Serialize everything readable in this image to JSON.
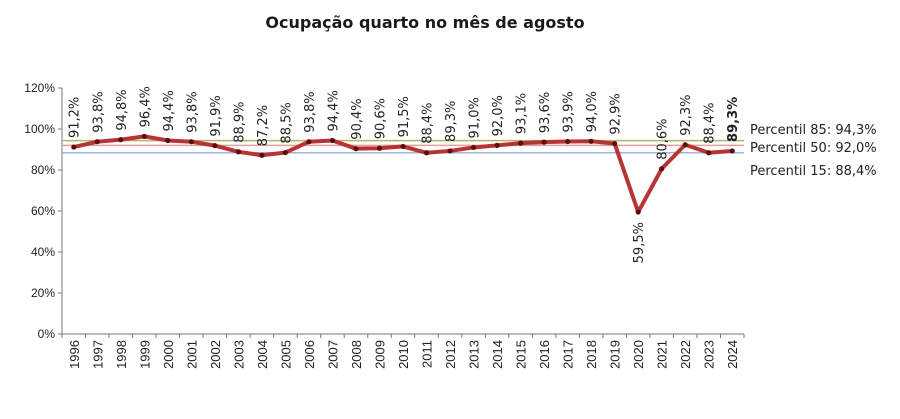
{
  "chart_data": {
    "type": "line",
    "title": "Ocupação quarto no mês de agosto",
    "categories": [
      "1996",
      "1997",
      "1998",
      "1999",
      "2000",
      "2001",
      "2002",
      "2003",
      "2004",
      "2005",
      "2006",
      "2007",
      "2008",
      "2009",
      "2010",
      "2011",
      "2012",
      "2013",
      "2014",
      "2015",
      "2016",
      "2017",
      "2018",
      "2019",
      "2020",
      "2021",
      "2022",
      "2023",
      "2024"
    ],
    "values": [
      91.2,
      93.8,
      94.8,
      96.4,
      94.4,
      93.8,
      91.9,
      88.9,
      87.2,
      88.5,
      93.8,
      94.4,
      90.4,
      90.6,
      91.5,
      88.4,
      89.3,
      91.0,
      92.0,
      93.1,
      93.6,
      93.9,
      94.0,
      92.9,
      59.5,
      80.6,
      92.3,
      88.4,
      89.3
    ],
    "data_labels": [
      "91,2%",
      "93,8%",
      "94,8%",
      "96,4%",
      "94,4%",
      "93,8%",
      "91,9%",
      "88,9%",
      "87,2%",
      "88,5%",
      "93,8%",
      "94,4%",
      "90,4%",
      "90,6%",
      "91,5%",
      "88,4%",
      "89,3%",
      "91,0%",
      "92,0%",
      "93,1%",
      "93,6%",
      "93,9%",
      "94,0%",
      "92,9%",
      "59,5%",
      "80,6%",
      "92,3%",
      "88,4%",
      "89,3%"
    ],
    "highlight_last": true,
    "ylim": [
      0,
      120
    ],
    "yticks": [
      "0%",
      "20%",
      "40%",
      "60%",
      "80%",
      "100%",
      "120%"
    ],
    "grid": false,
    "line_color": "#b83333",
    "reference_lines": [
      {
        "label": "Percentil 85: 94,3%",
        "value": 94.3,
        "color": "#b9b06a"
      },
      {
        "label": "Percentil 50: 92,0%",
        "value": 92.0,
        "color": "#e0a0a0"
      },
      {
        "label": "Percentil 15: 88,4%",
        "value": 88.4,
        "color": "#9db6d6"
      }
    ]
  }
}
